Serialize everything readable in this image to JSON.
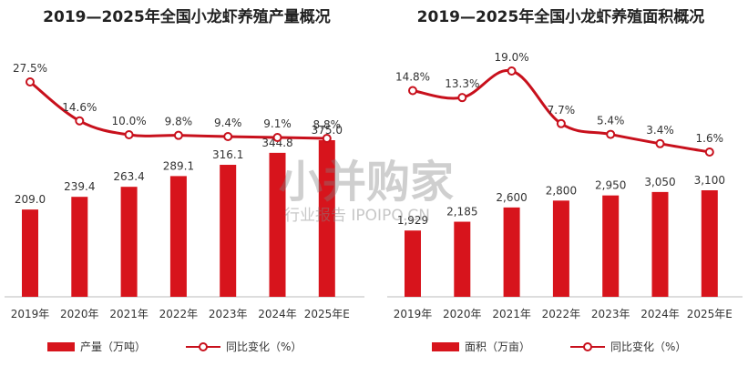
{
  "watermark": {
    "logo": "小并购家",
    "subtitle": "行业报告 IPOIPO.CN"
  },
  "chart_data": [
    {
      "type": "bar+line",
      "title": "2019—2025年全国小龙虾养殖产量概况",
      "categories": [
        "2019年",
        "2020年",
        "2021年",
        "2022年",
        "2023年",
        "2024年",
        "2025年E"
      ],
      "series": [
        {
          "name": "产量（万吨）",
          "type": "bar",
          "values": [
            209.0,
            239.4,
            263.4,
            289.1,
            316.1,
            344.8,
            375.0
          ],
          "labels": [
            "209.0",
            "239.4",
            "263.4",
            "289.1",
            "316.1",
            "344.8",
            "375.0"
          ]
        },
        {
          "name": "同比变化（%）",
          "type": "line",
          "values": [
            27.5,
            14.6,
            10.0,
            9.8,
            9.4,
            9.1,
            8.8
          ],
          "labels": [
            "27.5%",
            "14.6%",
            "10.0%",
            "9.8%",
            "9.4%",
            "9.1%",
            "8.8%"
          ]
        }
      ],
      "legend": "bottom",
      "colors": {
        "bar": "#d7141c",
        "line": "#c8101c"
      }
    },
    {
      "type": "bar+line",
      "title": "2019—2025年全国小龙虾养殖面积概况",
      "categories": [
        "2019年",
        "2020年",
        "2021年",
        "2022年",
        "2023年",
        "2024年",
        "2025年E"
      ],
      "series": [
        {
          "name": "面积（万亩）",
          "type": "bar",
          "values": [
            1929,
            2185,
            2600,
            2800,
            2950,
            3050,
            3100
          ],
          "labels": [
            "1,929",
            "2,185",
            "2,600",
            "2,800",
            "2,950",
            "3,050",
            "3,100"
          ]
        },
        {
          "name": "同比变化（%）",
          "type": "line",
          "values": [
            14.8,
            13.3,
            19.0,
            7.7,
            5.4,
            3.4,
            1.6
          ],
          "labels": [
            "14.8%",
            "13.3%",
            "19.0%",
            "7.7%",
            "5.4%",
            "3.4%",
            "1.6%"
          ]
        }
      ],
      "legend": "bottom",
      "colors": {
        "bar": "#d7141c",
        "line": "#c8101c"
      }
    }
  ]
}
